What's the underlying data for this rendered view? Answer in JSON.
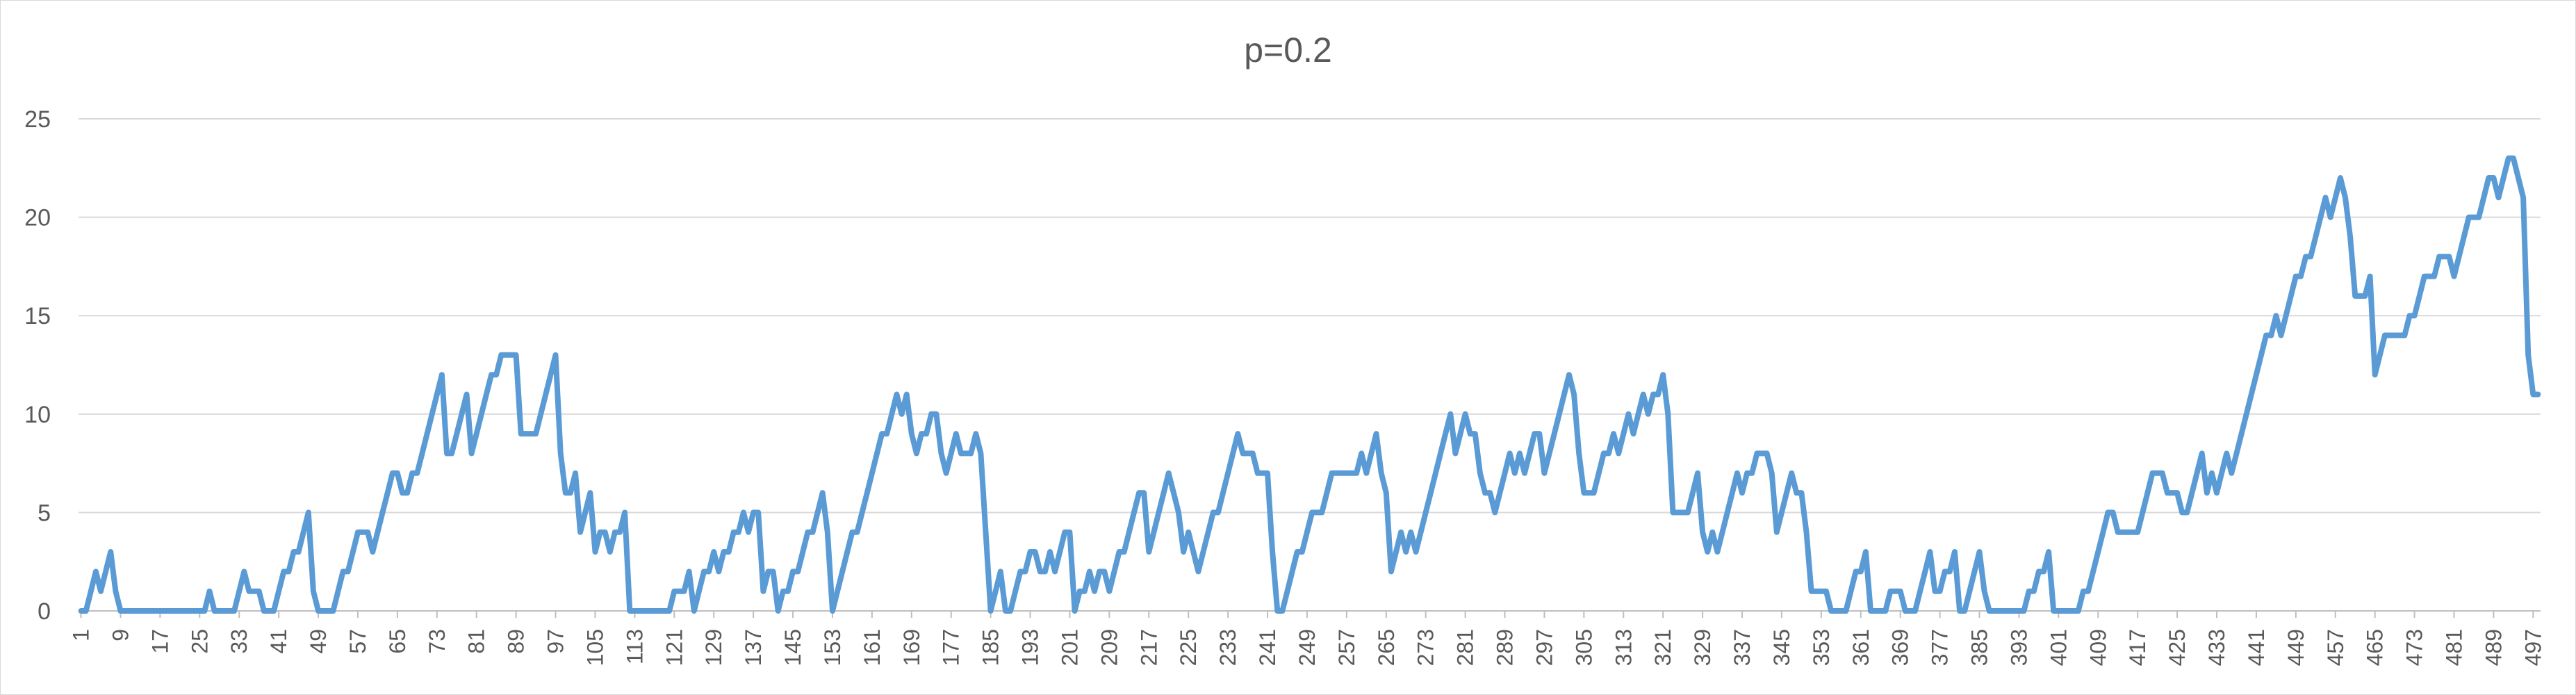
{
  "chart_data": {
    "type": "line",
    "title": "p=0.2",
    "xlabel": "",
    "ylabel": "",
    "ylim": [
      0,
      25
    ],
    "yticks": [
      0,
      5,
      10,
      15,
      20,
      25
    ],
    "grid": true,
    "legend": "none",
    "colors": {
      "series": "#5b9bd5",
      "grid": "#d9d9d9",
      "text": "#595959"
    },
    "x_start": 1,
    "x_tick_labels": [
      "1",
      "9",
      "17",
      "25",
      "33",
      "41",
      "49",
      "57",
      "65",
      "73",
      "81",
      "89",
      "97",
      "105",
      "113",
      "121",
      "129",
      "137",
      "145",
      "153",
      "161",
      "169",
      "177",
      "185",
      "193",
      "201",
      "209",
      "217",
      "225",
      "233",
      "241",
      "249",
      "257",
      "265",
      "273",
      "281",
      "289",
      "297",
      "305",
      "313",
      "321",
      "329",
      "337",
      "345",
      "353",
      "361",
      "369",
      "377",
      "385",
      "393",
      "401",
      "409",
      "417",
      "425",
      "433",
      "441",
      "449",
      "457",
      "465",
      "473",
      "481",
      "489",
      "497"
    ],
    "series": [
      {
        "values": [
          0,
          0,
          1,
          2,
          1,
          2,
          3,
          1,
          0,
          0,
          0,
          0,
          0,
          0,
          0,
          0,
          0,
          0,
          0,
          0,
          0,
          0,
          0,
          0,
          0,
          0,
          1,
          0,
          0,
          0,
          0,
          0,
          1,
          2,
          1,
          1,
          1,
          0,
          0,
          0,
          1,
          2,
          2,
          3,
          3,
          4,
          5,
          1,
          0,
          0,
          0,
          0,
          1,
          2,
          2,
          3,
          4,
          4,
          4,
          3,
          4,
          5,
          6,
          7,
          7,
          6,
          6,
          7,
          7,
          8,
          9,
          10,
          11,
          12,
          8,
          8,
          9,
          10,
          11,
          8,
          9,
          10,
          11,
          12,
          12,
          13,
          13,
          13,
          13,
          9,
          9,
          9,
          9,
          10,
          11,
          12,
          13,
          8,
          6,
          6,
          7,
          4,
          5,
          6,
          3,
          4,
          4,
          3,
          4,
          4,
          5,
          0,
          0,
          0,
          0,
          0,
          0,
          0,
          0,
          0,
          1,
          1,
          1,
          2,
          0,
          1,
          2,
          2,
          3,
          2,
          3,
          3,
          4,
          4,
          5,
          4,
          5,
          5,
          1,
          2,
          2,
          0,
          1,
          1,
          2,
          2,
          3,
          4,
          4,
          5,
          6,
          4,
          0,
          1,
          2,
          3,
          4,
          4,
          5,
          6,
          7,
          8,
          9,
          9,
          10,
          11,
          10,
          11,
          9,
          8,
          9,
          9,
          10,
          10,
          8,
          7,
          8,
          9,
          8,
          8,
          8,
          9,
          8,
          4,
          0,
          1,
          2,
          0,
          0,
          1,
          2,
          2,
          3,
          3,
          2,
          2,
          3,
          2,
          3,
          4,
          4,
          0,
          1,
          1,
          2,
          1,
          2,
          2,
          1,
          2,
          3,
          3,
          4,
          5,
          6,
          6,
          3,
          4,
          5,
          6,
          7,
          6,
          5,
          3,
          4,
          3,
          2,
          3,
          4,
          5,
          5,
          6,
          7,
          8,
          9,
          8,
          8,
          8,
          7,
          7,
          7,
          3,
          0,
          0,
          1,
          2,
          3,
          3,
          4,
          5,
          5,
          5,
          6,
          7,
          7,
          7,
          7,
          7,
          7,
          8,
          7,
          8,
          9,
          7,
          6,
          2,
          3,
          4,
          3,
          4,
          3,
          4,
          5,
          6,
          7,
          8,
          9,
          10,
          8,
          9,
          10,
          9,
          9,
          7,
          6,
          6,
          5,
          6,
          7,
          8,
          7,
          8,
          7,
          8,
          9,
          9,
          7,
          8,
          9,
          10,
          11,
          12,
          11,
          8,
          6,
          6,
          6,
          7,
          8,
          8,
          9,
          8,
          9,
          10,
          9,
          10,
          11,
          10,
          11,
          11,
          12,
          10,
          5,
          5,
          5,
          5,
          6,
          7,
          4,
          3,
          4,
          3,
          4,
          5,
          6,
          7,
          6,
          7,
          7,
          8,
          8,
          8,
          7,
          4,
          5,
          6,
          7,
          6,
          6,
          4,
          1,
          1,
          1,
          1,
          0,
          0,
          0,
          0,
          1,
          2,
          2,
          3,
          0,
          0,
          0,
          0,
          1,
          1,
          1,
          0,
          0,
          0,
          1,
          2,
          3,
          1,
          1,
          2,
          2,
          3,
          0,
          0,
          1,
          2,
          3,
          1,
          0,
          0,
          0,
          0,
          0,
          0,
          0,
          0,
          1,
          1,
          2,
          2,
          3,
          0,
          0,
          0,
          0,
          0,
          0,
          1,
          1,
          2,
          3,
          4,
          5,
          5,
          4,
          4,
          4,
          4,
          4,
          5,
          6,
          7,
          7,
          7,
          6,
          6,
          6,
          5,
          5,
          6,
          7,
          8,
          6,
          7,
          6,
          7,
          8,
          7,
          8,
          9,
          10,
          11,
          12,
          13,
          14,
          14,
          15,
          14,
          15,
          16,
          17,
          17,
          18,
          18,
          19,
          20,
          21,
          20,
          21,
          22,
          21,
          19,
          16,
          16,
          16,
          17,
          12,
          13,
          14,
          14,
          14,
          14,
          14,
          15,
          15,
          16,
          17,
          17,
          17,
          18,
          18,
          18,
          17,
          18,
          19,
          20,
          20,
          20,
          21,
          22,
          22,
          21,
          22,
          23,
          23,
          22,
          21,
          13,
          11,
          11
        ]
      }
    ]
  }
}
